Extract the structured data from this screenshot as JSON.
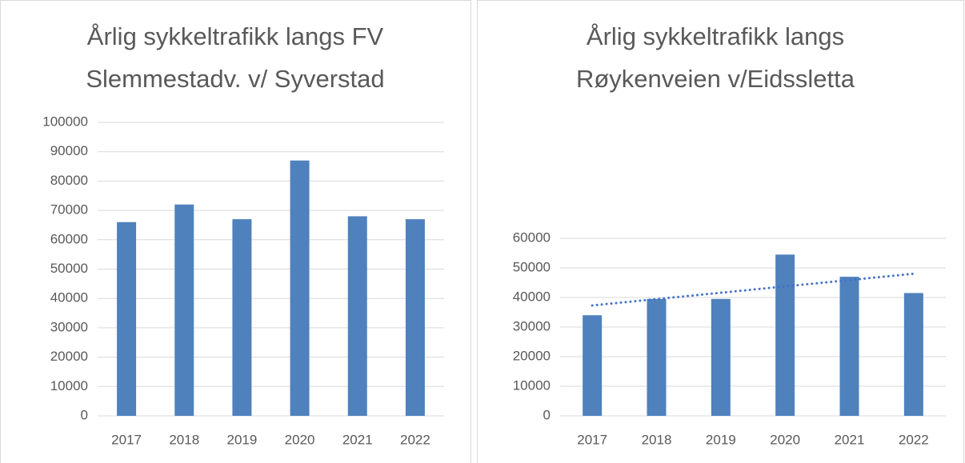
{
  "chart_data": [
    {
      "type": "bar",
      "title": [
        "Årlig sykkeltrafikk langs FV",
        "Slemmestadv. v/ Syverstad"
      ],
      "categories": [
        "2017",
        "2018",
        "2019",
        "2020",
        "2021",
        "2022"
      ],
      "values": [
        66000,
        72000,
        67000,
        87000,
        68000,
        67000
      ],
      "color": "#4f81bd",
      "ylim": [
        0,
        100000
      ],
      "yticks": [
        0,
        10000,
        20000,
        30000,
        40000,
        50000,
        60000,
        70000,
        80000,
        90000,
        100000
      ],
      "grid": true
    },
    {
      "type": "bar",
      "title": [
        "Årlig sykkeltrafikk langs",
        "Røykenveien v/Eidssletta"
      ],
      "categories": [
        "2017",
        "2018",
        "2019",
        "2020",
        "2021",
        "2022"
      ],
      "values": [
        34000,
        39500,
        39500,
        54500,
        47000,
        41500
      ],
      "color": "#4f81bd",
      "ylim": [
        0,
        60000
      ],
      "yticks": [
        0,
        10000,
        20000,
        30000,
        40000,
        50000,
        60000
      ],
      "grid": true,
      "trendline": "linear",
      "trendline_color": "#4472c4"
    }
  ]
}
